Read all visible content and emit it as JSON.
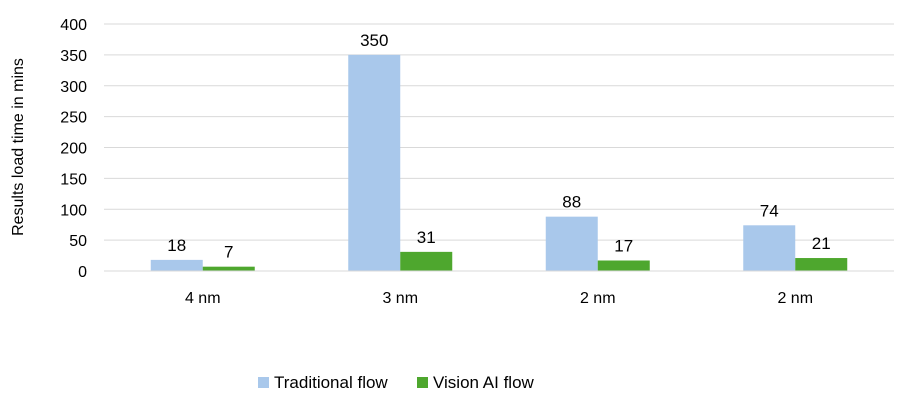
{
  "chart_data": {
    "type": "bar",
    "title": "",
    "xlabel": "",
    "ylabel": "Results load time in mins",
    "categories": [
      "4 nm",
      "3 nm",
      "2 nm",
      "2 nm"
    ],
    "series": [
      {
        "name": "Traditional flow",
        "values": [
          18,
          350,
          88,
          74
        ],
        "color": "#A9C8EB"
      },
      {
        "name": "Vision AI flow",
        "values": [
          7,
          31,
          17,
          21
        ],
        "color": "#4EA72E"
      }
    ],
    "ylim": [
      0,
      400
    ],
    "yticks": [
      0,
      50,
      100,
      150,
      200,
      250,
      300,
      350,
      400
    ],
    "grid": true,
    "gridline_color": "#D9D9D9",
    "data_labels": true,
    "legend_position": "bottom"
  }
}
